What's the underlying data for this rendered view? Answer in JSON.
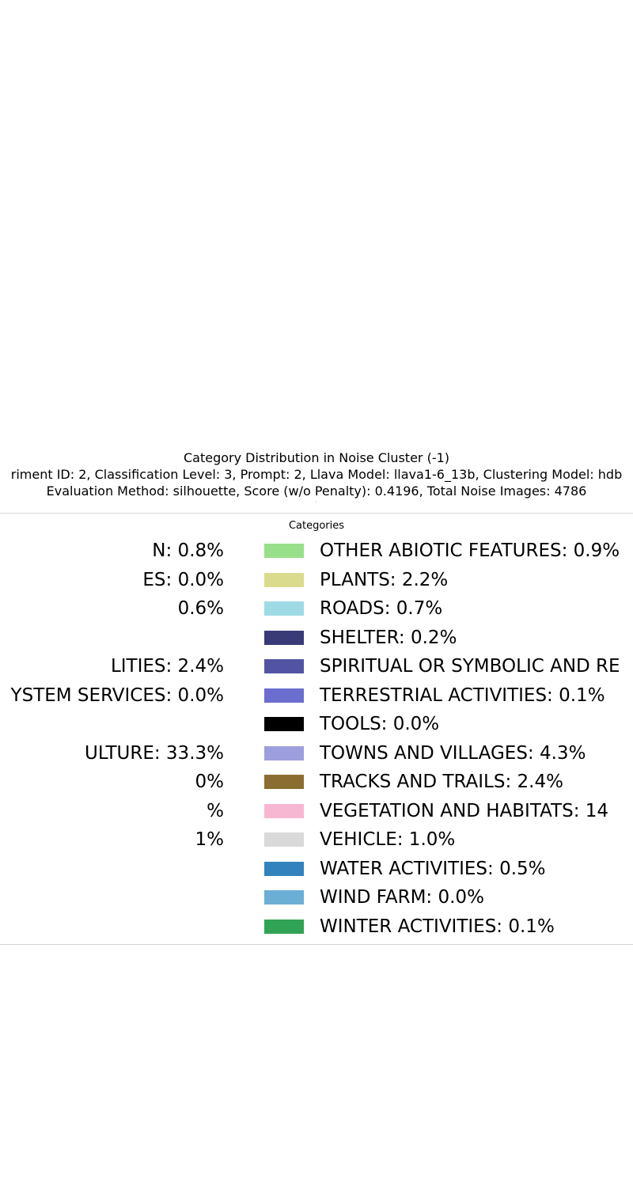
{
  "chart_data": {
    "type": "pie",
    "title": "Category Distribution in Noise Cluster (-1)",
    "subtitle_lines": [
      "riment ID: 2, Classification Level: 3, Prompt: 2, Llava Model: llava1-6_13b, Clustering Model: hdb",
      "Evaluation Method: silhouette, Score (w/o Penalty): 0.4196, Total Noise Images: 4786"
    ],
    "legend_title": "Categories",
    "legend_placement": "center",
    "legend_left_column": [
      {
        "label": "N: 0.8%"
      },
      {
        "label": "ES: 0.0%"
      },
      {
        "label": "0.6%"
      },
      {
        "label": ""
      },
      {
        "label": "LITIES: 2.4%"
      },
      {
        "label": "YSTEM SERVICES: 0.0%"
      },
      {
        "label": ""
      },
      {
        "label": "ULTURE: 33.3%"
      },
      {
        "label": "0%"
      },
      {
        "label": "%"
      },
      {
        "label": "1%"
      },
      {
        "label": ""
      }
    ],
    "legend_right_column": [
      {
        "label": "OTHER ABIOTIC FEATURES: 0.9%",
        "color": "#98df8a"
      },
      {
        "label": "PLANTS: 2.2%",
        "color": "#dbdb8d"
      },
      {
        "label": "ROADS: 0.7%",
        "color": "#9edae5"
      },
      {
        "label": "SHELTER: 0.2%",
        "color": "#393b79"
      },
      {
        "label": "SPIRITUAL OR SYMBOLIC AND RE",
        "color": "#5254a3"
      },
      {
        "label": "TERRESTRIAL ACTIVITIES: 0.1%",
        "color": "#6b6ecf"
      },
      {
        "label": "TOOLS: 0.0%",
        "color": "#000000"
      },
      {
        "label": "TOWNS AND VILLAGES: 4.3%",
        "color": "#9c9ede"
      },
      {
        "label": "TRACKS AND TRAILS: 2.4%",
        "color": "#8c6d31"
      },
      {
        "label": "VEGETATION AND HABITATS: 14",
        "color": "#f7b6d2"
      },
      {
        "label": "VEHICLE: 1.0%",
        "color": "#d9d9d9"
      },
      {
        "label": "WATER ACTIVITIES: 0.5%",
        "color": "#3182bd"
      },
      {
        "label": "WIND FARM: 0.0%",
        "color": "#6baed6"
      },
      {
        "label": "WINTER ACTIVITIES: 0.1%",
        "color": "#31a354"
      }
    ]
  }
}
